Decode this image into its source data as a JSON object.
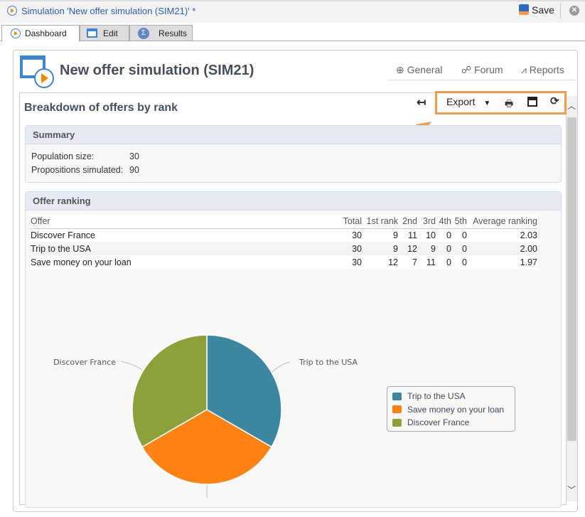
{
  "window": {
    "title": "Simulation 'New offer simulation (SIM21)' *",
    "save_label": "Save"
  },
  "tabs": [
    {
      "label": "Dashboard",
      "active": true
    },
    {
      "label": "Edit"
    },
    {
      "label": "Results"
    }
  ],
  "header": {
    "title": "New offer simulation (SIM21)",
    "links": [
      "General",
      "Forum",
      "Reports"
    ]
  },
  "report": {
    "title": "Breakdown of offers by rank",
    "export_label": "Export"
  },
  "summary": {
    "heading": "Summary",
    "population_label": "Population size:",
    "population_value": "30",
    "propositions_label": "Propositions simulated:",
    "propositions_value": "90"
  },
  "ranking": {
    "heading": "Offer ranking",
    "columns": [
      "Offer",
      "Total",
      "1st rank",
      "2nd",
      "3rd",
      "4th",
      "5th",
      "Average ranking"
    ],
    "rows": [
      [
        "Discover France",
        "30",
        "9",
        "11",
        "10",
        "0",
        "0",
        "2.03"
      ],
      [
        "Trip to the USA",
        "30",
        "9",
        "12",
        "9",
        "0",
        "0",
        "2.00"
      ],
      [
        "Save money on your loan",
        "30",
        "12",
        "7",
        "11",
        "0",
        "0",
        "1.97"
      ]
    ]
  },
  "chart_data": {
    "type": "pie",
    "legend": "right",
    "slices": [
      {
        "name": "Trip to the USA",
        "value": 30,
        "color": "#3b87a0"
      },
      {
        "name": "Save money on your loan",
        "value": 30,
        "color": "#fd8212"
      },
      {
        "name": "Discover France",
        "value": 30,
        "color": "#8ba23a"
      }
    ],
    "labels": [
      "Trip to the USA",
      "Discover France"
    ]
  }
}
